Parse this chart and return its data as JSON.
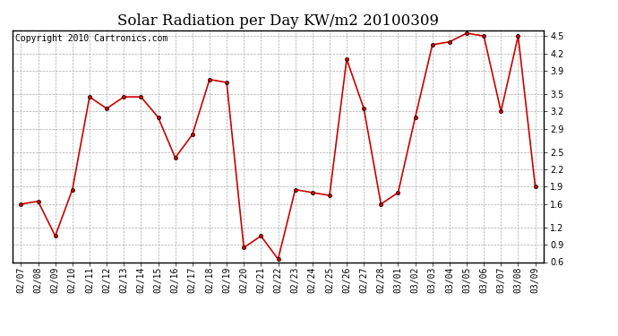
{
  "title": "Solar Radiation per Day KW/m2 20100309",
  "copyright": "Copyright 2010 Cartronics.com",
  "dates": [
    "02/07",
    "02/08",
    "02/09",
    "02/10",
    "02/11",
    "02/12",
    "02/13",
    "02/14",
    "02/15",
    "02/16",
    "02/17",
    "02/18",
    "02/19",
    "02/20",
    "02/21",
    "02/22",
    "02/23",
    "02/24",
    "02/25",
    "02/26",
    "02/27",
    "02/28",
    "03/01",
    "03/02",
    "03/03",
    "03/04",
    "03/05",
    "03/06",
    "03/07",
    "03/08",
    "03/09"
  ],
  "values": [
    1.6,
    1.65,
    1.05,
    1.85,
    3.45,
    3.25,
    3.45,
    3.45,
    3.1,
    2.4,
    2.8,
    3.75,
    3.7,
    0.85,
    1.05,
    0.65,
    1.85,
    1.8,
    1.75,
    4.1,
    3.25,
    1.6,
    1.8,
    3.1,
    4.35,
    4.4,
    4.55,
    4.5,
    3.2,
    4.5,
    1.9
  ],
  "line_color": "#cc0000",
  "marker": "o",
  "markersize": 3,
  "linewidth": 1.2,
  "ylim": [
    0.6,
    4.6
  ],
  "yticks": [
    0.6,
    0.9,
    1.2,
    1.6,
    1.9,
    2.2,
    2.5,
    2.9,
    3.2,
    3.5,
    3.9,
    4.2,
    4.5
  ],
  "bg_color": "#ffffff",
  "plot_bg_color": "#ffffff",
  "grid_color": "#aaaaaa",
  "title_fontsize": 12,
  "copyright_fontsize": 7,
  "tick_fontsize": 7
}
